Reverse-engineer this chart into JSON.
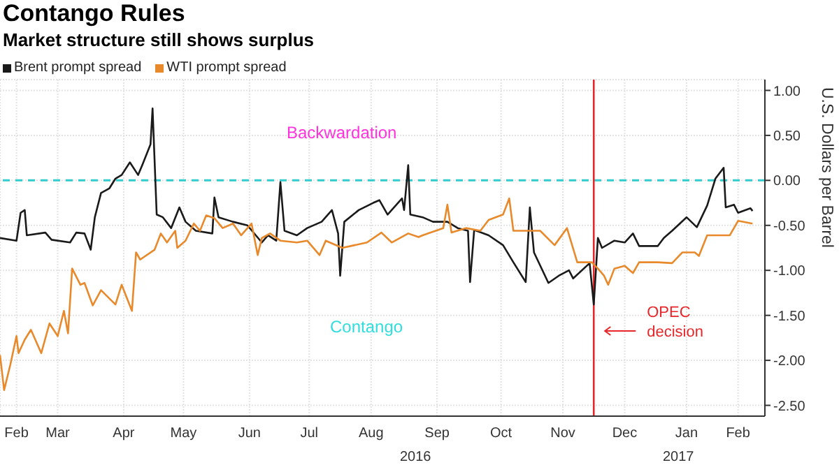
{
  "chart_data": {
    "type": "line",
    "title": "Contango Rules",
    "subtitle": "Market structure still shows surplus",
    "ylabel": "U.S. Dollars per Barrel",
    "annotations": [
      "Backwardation",
      "Contango",
      "2016",
      "2017"
    ],
    "xlim": [
      "2016-02-16",
      "2017-02-21"
    ],
    "xticks": [
      {
        "value": "2016-02-24",
        "label": "Feb"
      },
      {
        "value": "2016-03-15",
        "label": "Mar"
      },
      {
        "value": "2016-04-16",
        "label": "Apr"
      },
      {
        "value": "2016-05-15",
        "label": "May"
      },
      {
        "value": "2016-06-16",
        "label": "Jun"
      },
      {
        "value": "2016-07-15",
        "label": "Jul"
      },
      {
        "value": "2016-08-14",
        "label": "Aug"
      },
      {
        "value": "2016-09-15",
        "label": "Sep"
      },
      {
        "value": "2016-10-16",
        "label": "Oct"
      },
      {
        "value": "2016-11-15",
        "label": "Nov"
      },
      {
        "value": "2016-12-15",
        "label": "Dec"
      },
      {
        "value": "2017-01-14",
        "label": "Jan"
      },
      {
        "value": "2017-02-08",
        "label": "Feb"
      }
    ],
    "ylim": [
      -2.62,
      1.12
    ],
    "yticks": [
      {
        "value": 1,
        "label": "1.00"
      },
      {
        "value": 0.5,
        "label": "0.50"
      },
      {
        "value": 0,
        "label": "0.00"
      },
      {
        "value": -0.5,
        "label": "-0.50"
      },
      {
        "value": -1,
        "label": "-1.00"
      },
      {
        "value": -1.5,
        "label": "-1.50"
      },
      {
        "value": -2,
        "label": "-2.00"
      },
      {
        "value": -2.5,
        "label": "-2.50"
      }
    ],
    "grid": true,
    "legend": "top left",
    "marker": "none",
    "line_style": "solid",
    "ref_lines": [
      {
        "axis": "y",
        "value": 0,
        "color": "#33cccc",
        "line_style": "dashed"
      },
      {
        "axis": "x",
        "value": "2016-11-30",
        "label": "OPEC decision",
        "color": "#e8262a",
        "line_style": "solid"
      }
    ],
    "series": [
      {
        "name": "Brent prompt spread",
        "color": "#1a1a1a",
        "x": [
          "2016-02-16",
          "2016-02-24",
          "2016-02-26",
          "2016-02-28",
          "2016-02-29",
          "2016-03-09",
          "2016-03-12",
          "2016-03-21",
          "2016-03-24",
          "2016-03-28",
          "2016-03-31",
          "2016-04-02",
          "2016-04-05",
          "2016-04-09",
          "2016-04-12",
          "2016-04-15",
          "2016-04-19",
          "2016-04-23",
          "2016-04-25",
          "2016-04-29",
          "2016-04-30",
          "2016-05-02",
          "2016-05-05",
          "2016-05-09",
          "2016-05-13",
          "2016-05-16",
          "2016-05-21",
          "2016-05-29",
          "2016-05-30",
          "2016-06-01",
          "2016-06-08",
          "2016-06-15",
          "2016-06-22",
          "2016-06-25",
          "2016-06-29",
          "2016-07-01",
          "2016-07-03",
          "2016-07-09",
          "2016-07-14",
          "2016-07-21",
          "2016-07-26",
          "2016-07-29",
          "2016-07-30",
          "2016-08-01",
          "2016-08-08",
          "2016-08-15",
          "2016-08-18",
          "2016-08-22",
          "2016-08-29",
          "2016-08-30",
          "2016-09-01",
          "2016-09-02",
          "2016-09-08",
          "2016-09-13",
          "2016-09-20",
          "2016-09-25",
          "2016-09-30",
          "2016-10-01",
          "2016-10-03",
          "2016-10-10",
          "2016-10-17",
          "2016-10-22",
          "2016-10-28",
          "2016-10-30",
          "2016-11-01",
          "2016-11-08",
          "2016-11-13",
          "2016-11-18",
          "2016-11-20",
          "2016-11-28",
          "2016-11-30",
          "2016-12-02",
          "2016-12-04",
          "2016-12-10",
          "2016-12-15",
          "2016-12-19",
          "2016-12-22",
          "2016-12-31",
          "2017-01-03",
          "2017-01-07",
          "2017-01-14",
          "2017-01-19",
          "2017-01-24",
          "2017-01-28",
          "2017-02-01",
          "2017-02-02",
          "2017-02-06",
          "2017-02-08",
          "2017-02-14",
          "2017-02-15"
        ],
        "values": [
          -0.64,
          -0.67,
          -0.36,
          -0.33,
          -0.61,
          -0.58,
          -0.66,
          -0.69,
          -0.58,
          -0.59,
          -0.77,
          -0.41,
          -0.14,
          -0.09,
          0.02,
          0.06,
          0.2,
          0.06,
          0.17,
          0.4,
          0.8,
          -0.38,
          -0.41,
          -0.53,
          -0.3,
          -0.46,
          -0.56,
          -0.59,
          -0.19,
          -0.41,
          -0.46,
          -0.5,
          -0.69,
          -0.61,
          -0.67,
          -0.02,
          -0.56,
          -0.61,
          -0.53,
          -0.46,
          -0.33,
          -0.59,
          -1.06,
          -0.46,
          -0.33,
          -0.25,
          -0.22,
          -0.38,
          -0.2,
          -0.33,
          0.17,
          -0.38,
          -0.41,
          -0.46,
          -0.46,
          -0.53,
          -0.56,
          -1.13,
          -0.55,
          -0.61,
          -0.72,
          -0.91,
          -1.13,
          -0.3,
          -0.8,
          -1.14,
          -1.06,
          -1.0,
          -1.09,
          -0.92,
          -1.38,
          -0.64,
          -0.75,
          -0.67,
          -0.69,
          -0.59,
          -0.73,
          -0.73,
          -0.64,
          -0.56,
          -0.41,
          -0.52,
          -0.28,
          0.02,
          0.14,
          -0.3,
          -0.27,
          -0.36,
          -0.31,
          -0.34
        ]
      },
      {
        "name": "WTI prompt spread",
        "color": "#e8892b",
        "x": [
          "2016-02-16",
          "2016-02-18",
          "2016-02-21",
          "2016-02-24",
          "2016-02-25",
          "2016-02-28",
          "2016-03-02",
          "2016-03-07",
          "2016-03-11",
          "2016-03-15",
          "2016-03-18",
          "2016-03-20",
          "2016-03-22",
          "2016-03-26",
          "2016-03-28",
          "2016-04-01",
          "2016-04-05",
          "2016-04-12",
          "2016-04-15",
          "2016-04-20",
          "2016-04-22",
          "2016-04-24",
          "2016-05-01",
          "2016-05-04",
          "2016-05-07",
          "2016-05-11",
          "2016-05-12",
          "2016-05-16",
          "2016-05-20",
          "2016-05-23",
          "2016-05-26",
          "2016-05-30",
          "2016-06-03",
          "2016-06-08",
          "2016-06-12",
          "2016-06-17",
          "2016-06-20",
          "2016-06-22",
          "2016-06-26",
          "2016-07-01",
          "2016-07-09",
          "2016-07-14",
          "2016-07-20",
          "2016-07-23",
          "2016-07-31",
          "2016-08-06",
          "2016-08-12",
          "2016-08-19",
          "2016-08-24",
          "2016-09-01",
          "2016-09-06",
          "2016-09-08",
          "2016-09-18",
          "2016-09-20",
          "2016-09-22",
          "2016-09-29",
          "2016-10-06",
          "2016-10-10",
          "2016-10-17",
          "2016-10-20",
          "2016-10-22",
          "2016-10-29",
          "2016-11-04",
          "2016-11-11",
          "2016-11-17",
          "2016-11-22",
          "2016-11-29",
          "2016-12-02",
          "2016-12-05",
          "2016-12-07",
          "2016-12-10",
          "2016-12-15",
          "2016-12-19",
          "2016-12-22",
          "2016-12-31",
          "2017-01-07",
          "2017-01-12",
          "2017-01-18",
          "2017-01-20",
          "2017-01-24",
          "2017-02-04",
          "2017-02-08",
          "2017-02-15"
        ],
        "values": [
          -1.94,
          -2.33,
          -2.05,
          -1.73,
          -1.92,
          -1.77,
          -1.66,
          -1.92,
          -1.59,
          -1.73,
          -1.45,
          -1.7,
          -0.98,
          -1.16,
          -1.14,
          -1.39,
          -1.22,
          -1.38,
          -1.16,
          -1.45,
          -0.8,
          -0.88,
          -0.77,
          -0.59,
          -0.69,
          -0.56,
          -0.75,
          -0.67,
          -0.48,
          -0.56,
          -0.39,
          -0.42,
          -0.53,
          -0.48,
          -0.61,
          -0.48,
          -0.83,
          -0.64,
          -0.59,
          -0.67,
          -0.69,
          -0.67,
          -0.83,
          -0.67,
          -0.75,
          -0.72,
          -0.69,
          -0.58,
          -0.69,
          -0.59,
          -0.63,
          -0.61,
          -0.53,
          -0.27,
          -0.58,
          -0.53,
          -0.56,
          -0.44,
          -0.38,
          -0.2,
          -0.56,
          -0.56,
          -0.56,
          -0.72,
          -0.53,
          -0.91,
          -0.91,
          -0.98,
          -1.06,
          -1.16,
          -0.98,
          -0.95,
          -1.03,
          -0.91,
          -0.91,
          -0.92,
          -0.8,
          -0.8,
          -0.84,
          -0.61,
          -0.61,
          -0.45,
          -0.48
        ]
      }
    ]
  }
}
